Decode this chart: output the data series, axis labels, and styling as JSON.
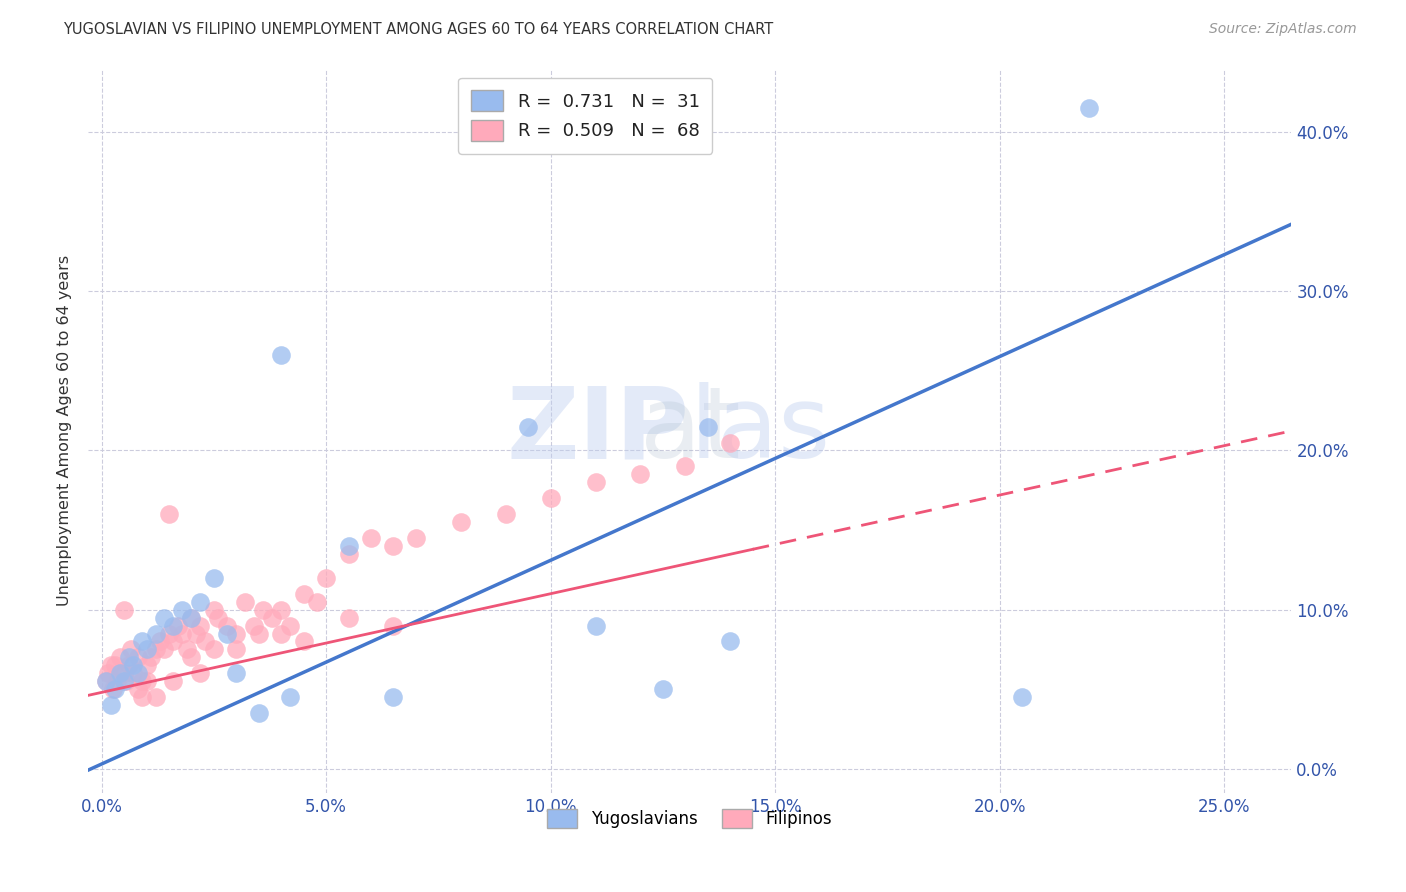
{
  "title": "YUGOSLAVIAN VS FILIPINO UNEMPLOYMENT AMONG AGES 60 TO 64 YEARS CORRELATION CHART",
  "source": "Source: ZipAtlas.com",
  "ylabel_label": "Unemployment Among Ages 60 to 64 years",
  "xmin": -0.3,
  "xmax": 26.5,
  "ymin": -1.5,
  "ymax": 44.0,
  "xtick_vals": [
    0,
    5,
    10,
    15,
    20,
    25
  ],
  "ytick_vals": [
    0,
    10,
    20,
    30,
    40
  ],
  "blue_scatter_color": "#99BBEE",
  "pink_scatter_color": "#FFAABB",
  "blue_line_color": "#4477CC",
  "pink_line_color": "#EE5577",
  "grid_color": "#CCCCDD",
  "text_color": "#3355AA",
  "title_color": "#333333",
  "source_color": "#999999",
  "ylabel_color": "#333333",
  "watermark_color": "#BBCCEE",
  "R_yug": 0.731,
  "N_yug": 31,
  "R_fil": 0.509,
  "N_fil": 68,
  "yug_line_m": 1.28,
  "yug_line_b": 0.3,
  "fil_line_m": 0.62,
  "fil_line_b": 4.8,
  "yug_x": [
    0.1,
    0.2,
    0.3,
    0.4,
    0.5,
    0.6,
    0.7,
    0.8,
    0.9,
    1.0,
    1.2,
    1.4,
    1.6,
    1.8,
    2.0,
    2.2,
    2.5,
    2.8,
    3.0,
    3.5,
    4.2,
    5.5,
    6.5,
    9.5,
    11.0,
    13.5,
    14.0,
    4.0,
    22.0,
    12.5,
    20.5
  ],
  "yug_y": [
    5.5,
    4.0,
    5.0,
    6.0,
    5.5,
    7.0,
    6.5,
    6.0,
    8.0,
    7.5,
    8.5,
    9.5,
    9.0,
    10.0,
    9.5,
    10.5,
    12.0,
    8.5,
    6.0,
    3.5,
    4.5,
    14.0,
    4.5,
    21.5,
    9.0,
    21.5,
    8.0,
    26.0,
    41.5,
    5.0,
    4.5
  ],
  "fil_x": [
    0.1,
    0.15,
    0.2,
    0.25,
    0.3,
    0.35,
    0.4,
    0.5,
    0.55,
    0.6,
    0.65,
    0.7,
    0.8,
    0.9,
    1.0,
    1.1,
    1.2,
    1.3,
    1.4,
    1.5,
    1.6,
    1.7,
    1.8,
    1.9,
    2.0,
    2.1,
    2.2,
    2.3,
    2.5,
    2.6,
    2.8,
    3.0,
    3.2,
    3.4,
    3.6,
    3.8,
    4.0,
    4.2,
    4.5,
    4.8,
    5.0,
    5.5,
    6.0,
    6.5,
    7.0,
    8.0,
    9.0,
    10.0,
    11.0,
    12.0,
    13.0,
    14.0,
    0.5,
    1.5,
    2.5,
    3.5,
    4.5,
    6.5,
    1.0,
    2.0,
    3.0,
    4.0,
    5.5,
    1.2,
    0.8,
    0.9,
    1.6,
    2.2
  ],
  "fil_y": [
    5.5,
    6.0,
    6.5,
    5.0,
    6.5,
    5.5,
    7.0,
    6.0,
    5.5,
    6.5,
    7.5,
    6.0,
    7.0,
    5.5,
    6.5,
    7.0,
    7.5,
    8.0,
    7.5,
    8.5,
    8.0,
    9.0,
    8.5,
    7.5,
    9.5,
    8.5,
    9.0,
    8.0,
    10.0,
    9.5,
    9.0,
    8.5,
    10.5,
    9.0,
    10.0,
    9.5,
    10.0,
    9.0,
    11.0,
    10.5,
    12.0,
    13.5,
    14.5,
    14.0,
    14.5,
    15.5,
    16.0,
    17.0,
    18.0,
    18.5,
    19.0,
    20.5,
    10.0,
    16.0,
    7.5,
    8.5,
    8.0,
    9.0,
    5.5,
    7.0,
    7.5,
    8.5,
    9.5,
    4.5,
    5.0,
    4.5,
    5.5,
    6.0
  ]
}
